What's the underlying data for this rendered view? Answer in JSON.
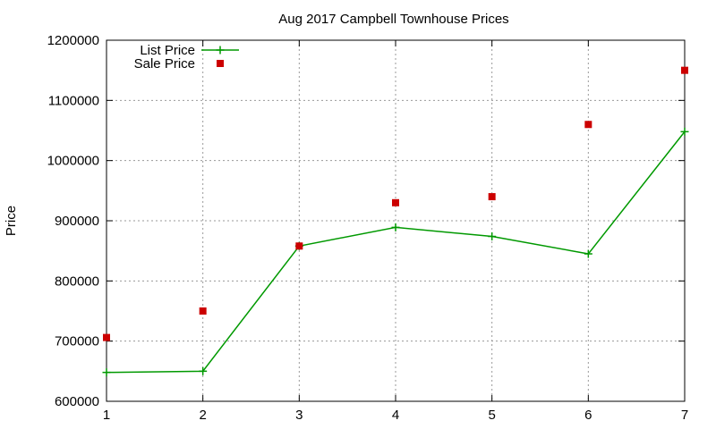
{
  "chart_data": {
    "type": "line",
    "title": "Aug 2017 Campbell Townhouse Prices",
    "xlabel": "",
    "ylabel": "Price",
    "x": [
      1,
      2,
      3,
      4,
      5,
      6,
      7
    ],
    "x_ticks": [
      "1",
      "2",
      "3",
      "4",
      "5",
      "6",
      "7"
    ],
    "y_ticks": [
      "600000",
      "700000",
      "800000",
      "900000",
      "1000000",
      "1100000",
      "1200000"
    ],
    "xlim": [
      1,
      7
    ],
    "ylim": [
      600000,
      1200000
    ],
    "grid": true,
    "legend_position": "top-left",
    "series": [
      {
        "name": "List Price",
        "kind": "line-with-plus-markers",
        "color": "#009900",
        "values": [
          648000,
          650000,
          858000,
          889000,
          874000,
          845000,
          1048000
        ]
      },
      {
        "name": "Sale Price",
        "kind": "square-markers",
        "color": "#cc0000",
        "values": [
          706000,
          750000,
          858000,
          930000,
          940000,
          1060000,
          1150000
        ]
      }
    ]
  }
}
